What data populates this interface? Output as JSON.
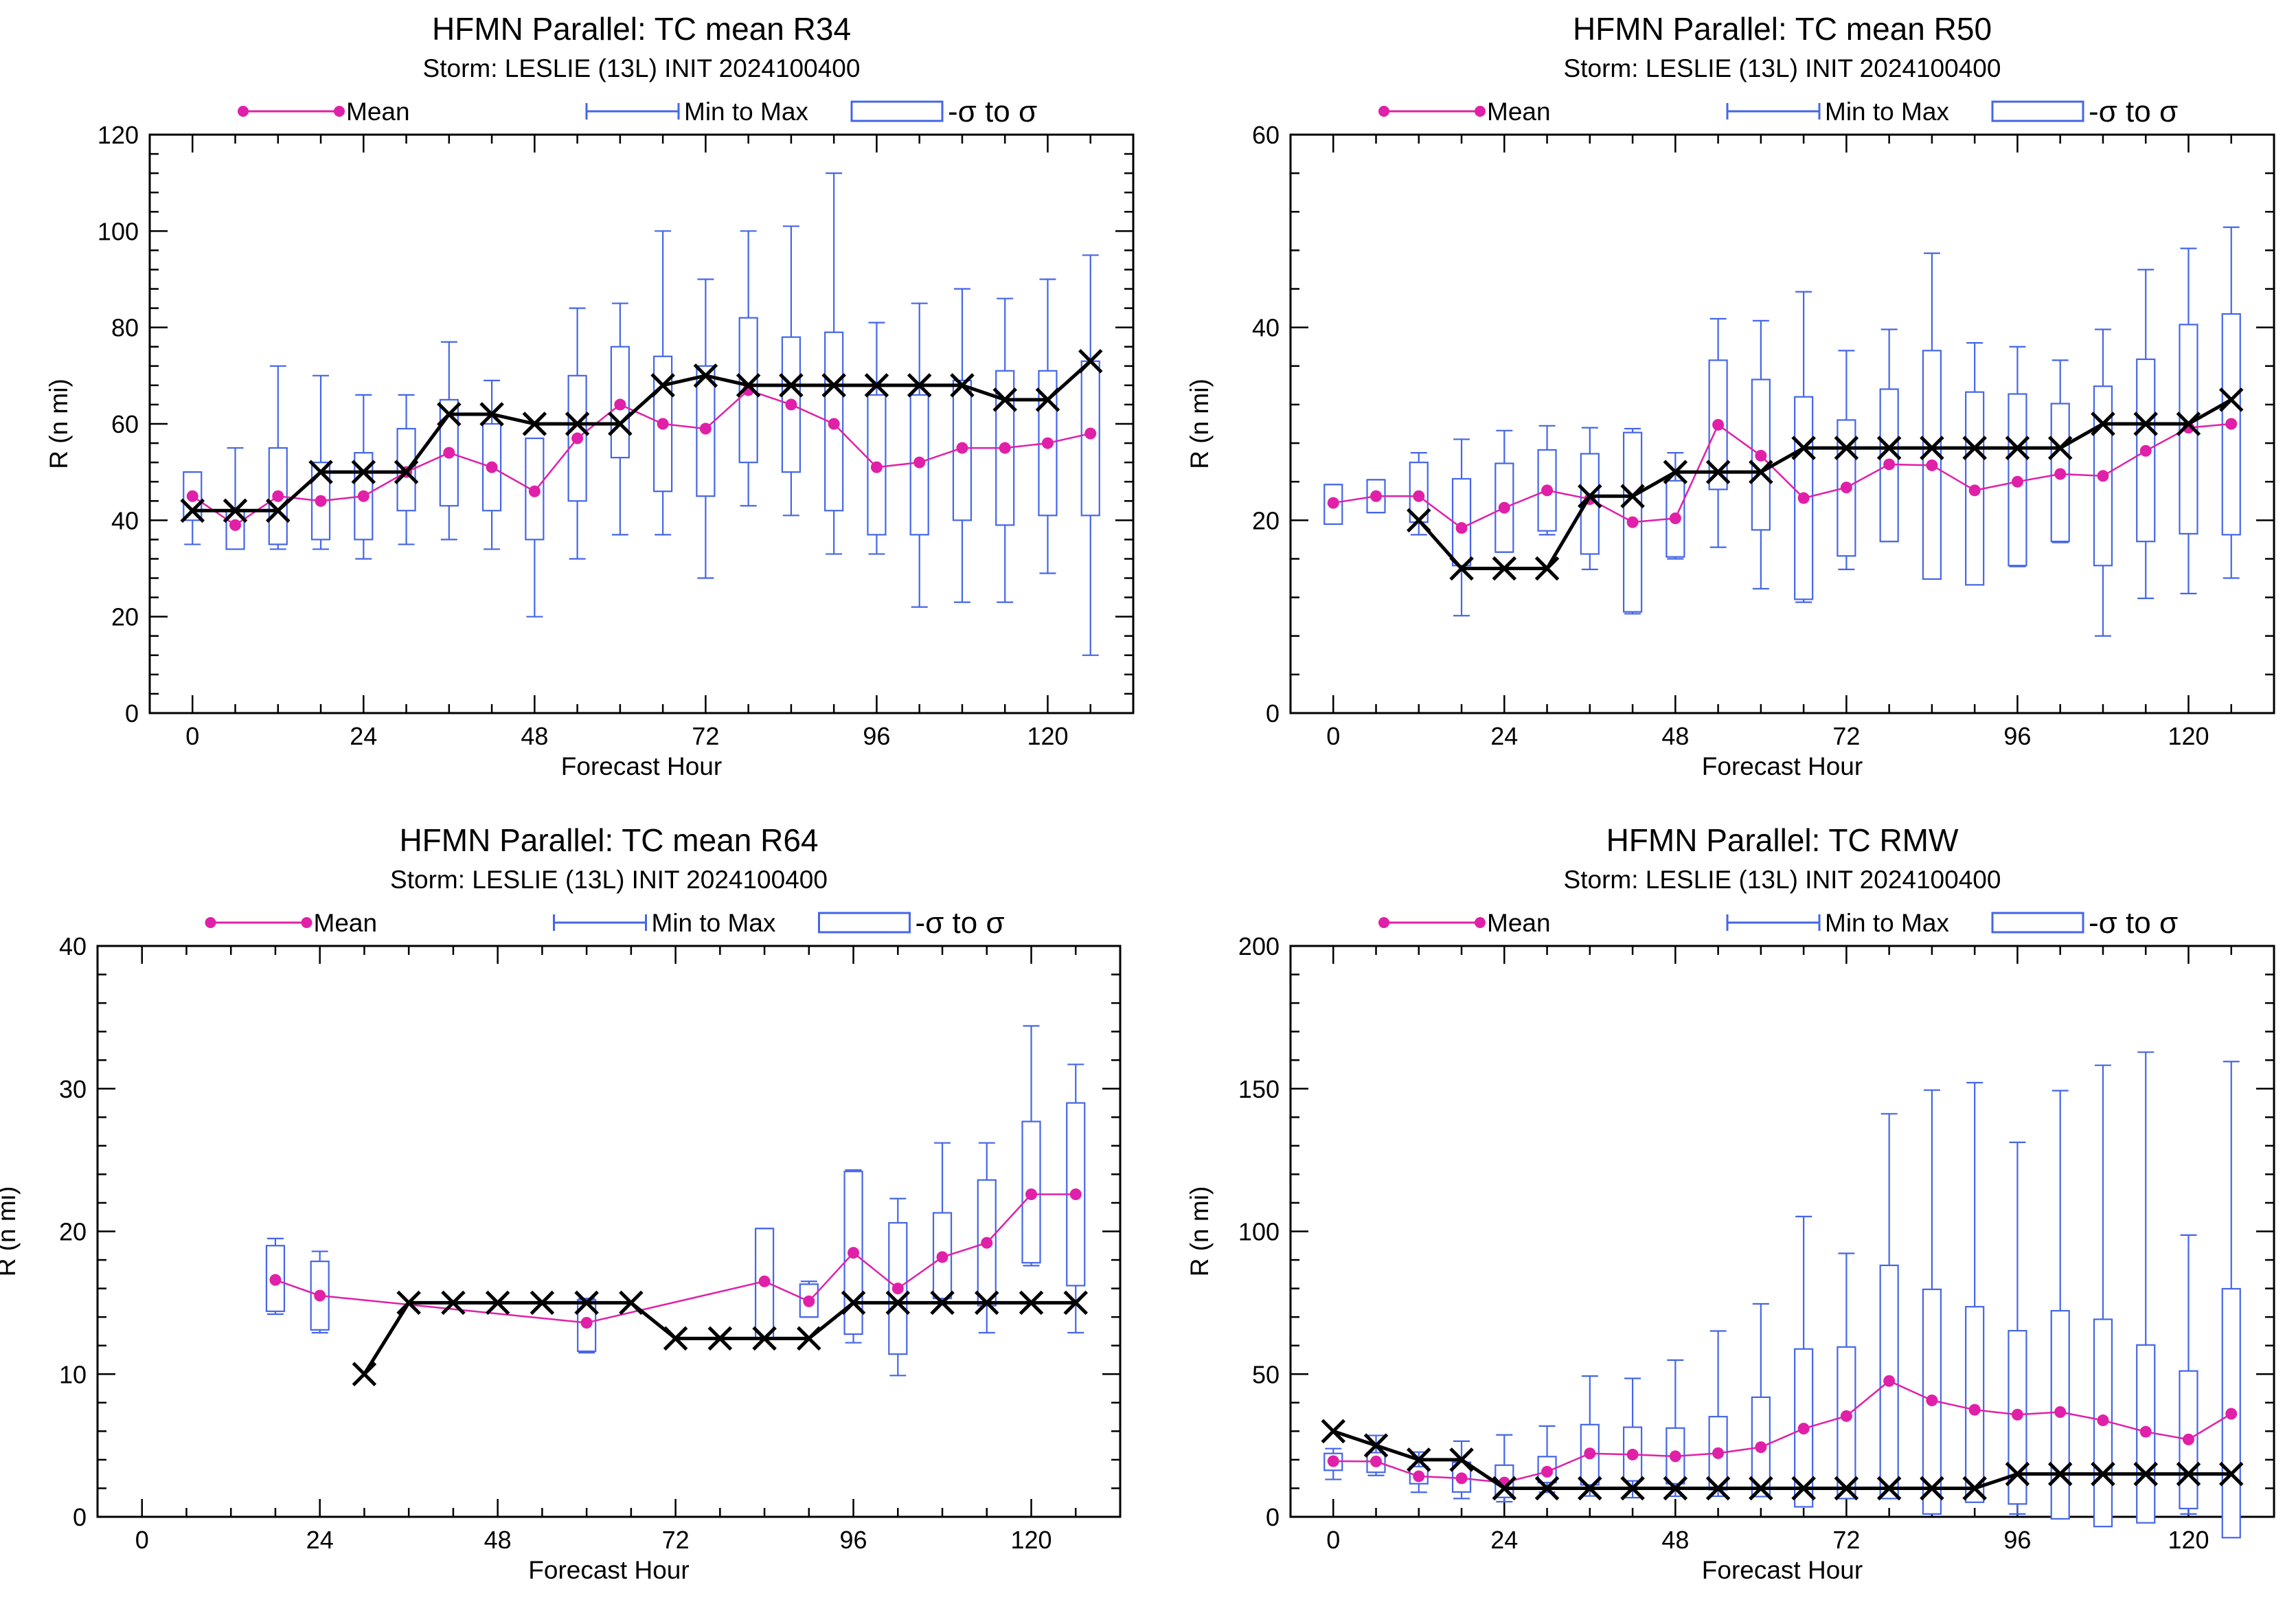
{
  "colors": {
    "mean": "#e020a8",
    "range": "#4466e8",
    "obs": "#000000",
    "background": "#ffffff"
  },
  "icons": {
    "obs_marker": "x-marker-icon",
    "mean_marker": "dot-marker-icon"
  },
  "legend": {
    "mean": "Mean",
    "minmax": "Min to Max",
    "sigma": "-σ to σ"
  },
  "chart_data": [
    {
      "type": "box-line",
      "title": "HFMN Parallel: TC mean R34",
      "subtitle": "Storm: LESLIE (13L) INIT 2024100400",
      "xlabel": "Forecast Hour",
      "ylabel": "R (n mi)",
      "xlim": [
        -6,
        132
      ],
      "ylim": [
        0,
        120
      ],
      "xticks": [
        0,
        24,
        48,
        72,
        96,
        120
      ],
      "yticks": [
        0,
        20,
        40,
        60,
        80,
        100,
        120
      ],
      "x": [
        0,
        6,
        12,
        18,
        24,
        30,
        36,
        42,
        48,
        54,
        60,
        66,
        72,
        78,
        84,
        90,
        96,
        102,
        108,
        114,
        120,
        126
      ],
      "mean": [
        45,
        39,
        45,
        44,
        45,
        50,
        54,
        51,
        46,
        57,
        64,
        60,
        59,
        67,
        64,
        60,
        51,
        52,
        55,
        55,
        56,
        58
      ],
      "min": [
        35,
        34,
        34,
        34,
        32,
        35,
        36,
        34,
        20,
        32,
        37,
        37,
        28,
        43,
        41,
        33,
        33,
        22,
        23,
        23,
        29,
        12
      ],
      "max": [
        50,
        55,
        72,
        70,
        66,
        66,
        77,
        69,
        57,
        84,
        85,
        100,
        90,
        100,
        101,
        112,
        81,
        85,
        88,
        86,
        90,
        95
      ],
      "sigma_low": [
        40,
        34,
        35,
        36,
        36,
        42,
        43,
        42,
        36,
        44,
        53,
        46,
        45,
        52,
        50,
        42,
        37,
        37,
        40,
        39,
        41,
        41
      ],
      "sigma_high": [
        50,
        42,
        55,
        52,
        54,
        59,
        65,
        60,
        57,
        70,
        76,
        74,
        72,
        82,
        78,
        79,
        66,
        66,
        69,
        71,
        71,
        73
      ],
      "obs_x": [
        0,
        6,
        12,
        18,
        24,
        30,
        36,
        42,
        48,
        54,
        60,
        66,
        72,
        78,
        84,
        90,
        96,
        102,
        108,
        114,
        120,
        126
      ],
      "obs": [
        42,
        42,
        42,
        50,
        50,
        50,
        62,
        62,
        60,
        60,
        60,
        68,
        70,
        68,
        68,
        68,
        68,
        68,
        68,
        65,
        65,
        73
      ]
    },
    {
      "type": "box-line",
      "title": "HFMN Parallel: TC mean R50",
      "subtitle": "Storm: LESLIE (13L) INIT 2024100400",
      "xlabel": "Forecast Hour",
      "ylabel": "R (n mi)",
      "xlim": [
        -6,
        132
      ],
      "ylim": [
        0,
        60
      ],
      "xticks": [
        0,
        24,
        48,
        72,
        96,
        120
      ],
      "yticks": [
        0,
        20,
        40,
        60
      ],
      "x": [
        0,
        6,
        12,
        18,
        24,
        30,
        36,
        42,
        48,
        54,
        60,
        66,
        72,
        78,
        84,
        90,
        96,
        102,
        108,
        114,
        120,
        126
      ],
      "mean": [
        21.8,
        22.5,
        22.5,
        19.2,
        21.3,
        23.1,
        22.2,
        19.8,
        20.2,
        29.9,
        26.7,
        22.3,
        23.4,
        25.8,
        25.7,
        23.1,
        24.0,
        24.8,
        24.6,
        27.2,
        29.6,
        30.0
      ],
      "min": [
        19.6,
        20.8,
        18.5,
        10.1,
        16.7,
        18.5,
        14.9,
        10.3,
        16.0,
        17.2,
        12.9,
        11.5,
        14.9,
        17.8,
        14.4,
        13.4,
        15.2,
        17.7,
        8.0,
        11.9,
        12.4,
        14.0
      ],
      "max": [
        23.7,
        24.2,
        27.0,
        28.4,
        29.3,
        29.8,
        29.6,
        29.5,
        27.0,
        40.9,
        40.7,
        43.7,
        37.6,
        39.8,
        47.7,
        38.4,
        38.0,
        36.6,
        39.8,
        46.0,
        48.2,
        50.4
      ],
      "sigma_low": [
        19.6,
        20.8,
        19.8,
        15.3,
        16.7,
        18.9,
        16.5,
        10.5,
        16.2,
        23.2,
        19.0,
        11.8,
        16.3,
        17.8,
        13.9,
        13.3,
        15.3,
        17.8,
        15.3,
        17.8,
        18.6,
        18.5
      ],
      "sigma_high": [
        23.7,
        24.2,
        26.0,
        24.3,
        25.9,
        27.3,
        26.9,
        29.1,
        24.1,
        36.6,
        34.6,
        32.8,
        30.4,
        33.6,
        37.6,
        33.3,
        33.1,
        32.1,
        33.9,
        36.7,
        40.3,
        41.4
      ],
      "obs_x": [
        12,
        18,
        24,
        30,
        36,
        42,
        48,
        54,
        60,
        66,
        72,
        78,
        84,
        90,
        96,
        102,
        108,
        114,
        120,
        126
      ],
      "obs": [
        20,
        15,
        15,
        15,
        22.5,
        22.5,
        25,
        25,
        25,
        27.5,
        27.5,
        27.5,
        27.5,
        27.5,
        27.5,
        27.5,
        30,
        30,
        30,
        32.5
      ]
    },
    {
      "type": "box-line",
      "title": "HFMN Parallel: TC mean R64",
      "subtitle": "Storm: LESLIE (13L) INIT 2024100400",
      "xlabel": "Forecast Hour",
      "ylabel": "R (n mi)",
      "xlim": [
        -6,
        132
      ],
      "ylim": [
        0,
        40
      ],
      "xticks": [
        0,
        24,
        48,
        72,
        96,
        120
      ],
      "yticks": [
        0,
        10,
        20,
        30,
        40
      ],
      "x": [
        18,
        24,
        60,
        84,
        90,
        96,
        102,
        108,
        114,
        120,
        126
      ],
      "mean": [
        16.6,
        15.5,
        13.6,
        16.5,
        15.1,
        18.5,
        16.0,
        18.2,
        19.2,
        22.6,
        22.6
      ],
      "min": [
        14.2,
        12.9,
        11.5,
        12.5,
        14.0,
        12.2,
        9.9,
        15.0,
        12.9,
        17.6,
        12.9
      ],
      "max": [
        19.5,
        18.6,
        15.3,
        20.2,
        16.5,
        24.3,
        22.3,
        26.2,
        26.2,
        34.4,
        31.7
      ],
      "sigma_low": [
        14.4,
        13.1,
        11.6,
        12.5,
        14.0,
        12.8,
        11.4,
        15.3,
        14.8,
        17.8,
        16.2
      ],
      "sigma_high": [
        19.0,
        17.9,
        15.2,
        20.2,
        16.3,
        24.2,
        20.6,
        21.3,
        23.6,
        27.7,
        29.0
      ],
      "obs_x": [
        30,
        36,
        42,
        48,
        54,
        60,
        66,
        72,
        78,
        84,
        90,
        96,
        102,
        108,
        114,
        120,
        126
      ],
      "obs": [
        10,
        15,
        15,
        15,
        15,
        15,
        15,
        12.5,
        12.5,
        12.5,
        12.5,
        15,
        15,
        15,
        15,
        15,
        15
      ]
    },
    {
      "type": "box-line",
      "title": "HFMN Parallel: TC RMW",
      "subtitle": "Storm: LESLIE (13L) INIT 2024100400",
      "xlabel": "Forecast Hour",
      "ylabel": "R (n mi)",
      "xlim": [
        -6,
        132
      ],
      "ylim": [
        0,
        200
      ],
      "xticks": [
        0,
        24,
        48,
        72,
        96,
        120
      ],
      "yticks": [
        0,
        50,
        100,
        150,
        200
      ],
      "x": [
        0,
        6,
        12,
        18,
        24,
        30,
        36,
        42,
        48,
        54,
        60,
        66,
        72,
        78,
        84,
        90,
        96,
        102,
        108,
        114,
        120,
        126
      ],
      "mean": [
        19.5,
        19.4,
        14.2,
        13.5,
        12.0,
        15.8,
        22.2,
        21.8,
        21.2,
        22.3,
        24.4,
        30.9,
        35.3,
        47.6,
        40.8,
        37.5,
        35.8,
        36.7,
        33.8,
        29.8,
        27.1,
        36.1
      ],
      "min": [
        13.1,
        14.5,
        8.6,
        6.4,
        5.3,
        8.6,
        7.3,
        6.7,
        7.2,
        7.2,
        7.2,
        4.1,
        7.2,
        7.2,
        6.4,
        6.4,
        1.0,
        1.0,
        1.0,
        1.0,
        1.0,
        1.0
      ],
      "max": [
        23.9,
        28.5,
        22.7,
        26.5,
        28.7,
        31.8,
        49.3,
        48.5,
        54.9,
        65.1,
        74.6,
        105.2,
        92.3,
        141.2,
        149.5,
        152.1,
        131.2,
        149.3,
        158.2,
        162.8,
        98.7,
        159.5
      ],
      "sigma_low": [
        16.3,
        15.6,
        11.6,
        8.7,
        6.8,
        12.0,
        11.2,
        12.6,
        11.6,
        9.5,
        7.1,
        3.5,
        6.4,
        6.4,
        1.0,
        5.1,
        4.5,
        -0.7,
        -3.4,
        -2.1,
        2.9,
        -7.3
      ],
      "sigma_high": [
        22.2,
        22.5,
        17.6,
        19.1,
        18.1,
        21.1,
        32.3,
        31.4,
        31.1,
        35.1,
        41.9,
        58.8,
        59.5,
        88.1,
        79.7,
        73.6,
        65.2,
        72.2,
        69.2,
        60.2,
        51.1,
        79.9
      ],
      "obs_x": [
        0,
        6,
        12,
        18,
        24,
        30,
        36,
        42,
        48,
        54,
        60,
        66,
        72,
        78,
        84,
        90,
        96,
        102,
        108,
        114,
        120,
        126
      ],
      "obs": [
        30,
        25,
        20,
        20,
        10,
        10,
        10,
        10,
        10,
        10,
        10,
        10,
        10,
        10,
        10,
        10,
        15,
        15,
        15,
        15,
        15,
        15
      ]
    }
  ]
}
